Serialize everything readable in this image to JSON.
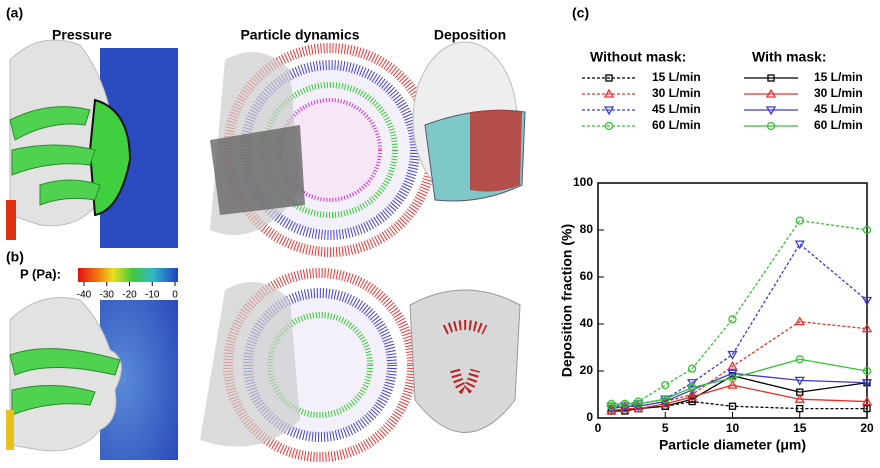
{
  "panel_labels": [
    "(a)",
    "(b)",
    "(c)"
  ],
  "column_titles": [
    "Pressure",
    "Particle dynamics",
    "Deposition"
  ],
  "colorbar": {
    "label": "P (Pa):",
    "ticks": [
      -40,
      -30,
      -20,
      -10,
      0
    ]
  },
  "chart_data": {
    "type": "line",
    "x_label": "Particle diameter (μm)",
    "y_label": "Deposition fraction (%)",
    "x": [
      1,
      2,
      3,
      5,
      7,
      10,
      15,
      20
    ],
    "xlim": [
      0,
      20
    ],
    "xticks": [
      0,
      5,
      10,
      15,
      20
    ],
    "ylim": [
      0,
      100
    ],
    "yticks": [
      0,
      20,
      40,
      60,
      80,
      100
    ],
    "legend_groups": [
      "Without mask:",
      "With mask:"
    ],
    "series": [
      {
        "name": "15 L/min",
        "group": 0,
        "dashed": true,
        "marker": "square",
        "color": "#000000",
        "values": [
          3,
          4,
          4,
          5,
          7,
          5,
          4,
          4
        ]
      },
      {
        "name": "30 L/min",
        "group": 0,
        "dashed": true,
        "marker": "triangle",
        "color": "#e8312a",
        "values": [
          4,
          5,
          5,
          7,
          10,
          22,
          41,
          38
        ]
      },
      {
        "name": "45 L/min",
        "group": 0,
        "dashed": true,
        "marker": "triangle-down",
        "color": "#3b3bd0",
        "values": [
          5,
          5,
          6,
          8,
          15,
          27,
          74,
          50
        ]
      },
      {
        "name": "60 L/min",
        "group": 0,
        "dashed": true,
        "marker": "circle",
        "color": "#33c233",
        "values": [
          6,
          6,
          7,
          14,
          21,
          42,
          84,
          80
        ]
      },
      {
        "name": "15 L/min",
        "group": 1,
        "dashed": false,
        "marker": "square",
        "color": "#000000",
        "values": [
          3,
          3,
          4,
          5,
          8,
          18,
          11,
          15
        ]
      },
      {
        "name": "30 L/min",
        "group": 1,
        "dashed": false,
        "marker": "triangle",
        "color": "#e8312a",
        "values": [
          3,
          4,
          4,
          6,
          9,
          14,
          8,
          7
        ]
      },
      {
        "name": "45 L/min",
        "group": 1,
        "dashed": false,
        "marker": "triangle-down",
        "color": "#3b3bd0",
        "values": [
          4,
          5,
          5,
          7,
          12,
          19,
          16,
          15
        ]
      },
      {
        "name": "60 L/min",
        "group": 1,
        "dashed": false,
        "marker": "circle",
        "color": "#33c233",
        "values": [
          5,
          6,
          6,
          8,
          13,
          17,
          25,
          20
        ]
      }
    ]
  }
}
